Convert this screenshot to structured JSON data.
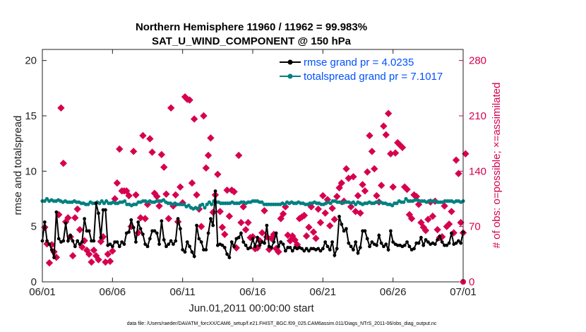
{
  "chart_data": {
    "type": "line",
    "title": "Northern Hemisphere 11960 / 11962 = 99.983%",
    "subtitle": "SAT_U_WIND_COMPONENT @ 150 hPa",
    "xlabel": "Jun.01,2011 00:00:00 start",
    "ylabel": "rmse and totalspread",
    "y2label": "# of obs: o=possible; ×=assimilated",
    "x_ticks": [
      "06/01",
      "06/06",
      "06/11",
      "06/16",
      "06/21",
      "06/26",
      "07/01"
    ],
    "x_range_days": [
      0,
      30
    ],
    "ylim": [
      0,
      21
    ],
    "y_ticks": [
      0,
      5,
      10,
      15,
      20
    ],
    "y2lim": [
      0,
      294
    ],
    "y2_ticks": [
      0,
      70,
      140,
      210,
      280
    ],
    "legend_position": "top-right",
    "footer": "data file: /Users/raeder/DAI/ATM_forcXX/CAM6_setup/f.e21.FHIST_BGC.f09_025.CAM6assim.011/Diags_NTrS_2011-06/obs_diag_output.nc",
    "colors": {
      "rmse": "#000000",
      "spread": "#00807f",
      "obs": "#d6004f",
      "legend_text": "#0050ff"
    },
    "series": [
      {
        "name": "rmse grand pr = 4.0235",
        "key": "rmse",
        "values": [
          3.7,
          5.4,
          3.7,
          3.4,
          2.9,
          2.2,
          6.3,
          3.9,
          3.6,
          3.7,
          5.3,
          3.7,
          4.2,
          3.7,
          3.2,
          3.7,
          3.4,
          3.6,
          5.7,
          4.6,
          4.6,
          3.7,
          3.7,
          7.1,
          6.2,
          4.0,
          6.5,
          6.5,
          3.3,
          3.4,
          3.2,
          3.6,
          3.6,
          3.2,
          3.6,
          3.4,
          4.4,
          4.5,
          5.6,
          4.9,
          3.6,
          5.4,
          4.8,
          4.3,
          3.4,
          3.2,
          3.9,
          4.6,
          4.6,
          4.4,
          3.4,
          5.5,
          3.8,
          3.2,
          3.4,
          3.7,
          3.4,
          3.7,
          5.7,
          4.8,
          2.9,
          2.7,
          3.6,
          3.2,
          2.7,
          2.3,
          5.1,
          3.9,
          3.6,
          2.9,
          2.9,
          4.4,
          5.7,
          5.1,
          8.2,
          3.3,
          3.4,
          3.3,
          3.1,
          2.5,
          2.2,
          3.6,
          3.2,
          3.9,
          4.0,
          4.4,
          3.6,
          3.3,
          3.0,
          3.1,
          3.9,
          3.2,
          4.0,
          3.3,
          3.6,
          3.5,
          5.1,
          3.2,
          3.1,
          3.6,
          4.4,
          3.2,
          3.6,
          3.4,
          2.8,
          3.1,
          3.1,
          2.8,
          3.1,
          3.0,
          3.1,
          3.0,
          2.8,
          3.0,
          2.8,
          3.0,
          3.0,
          2.9,
          3.0,
          2.8,
          3.0,
          3.6,
          3.2,
          2.9,
          3.6,
          2.4,
          3.0,
          5.9,
          5.2,
          4.6,
          4.8,
          3.5,
          3.2,
          2.9,
          3.6,
          2.6,
          3.1,
          4.6,
          4.6,
          3.9,
          3.2,
          3.6,
          3.4,
          3.3,
          4.2,
          3.5,
          3.2,
          3.4,
          2.9,
          4.6,
          3.6,
          3.4,
          3.3,
          3.3,
          3.2,
          3.3,
          3.6,
          3.2,
          2.9,
          3.0,
          3.5,
          3.5,
          4.0,
          3.3,
          3.8,
          3.6,
          3.4,
          3.5,
          3.4,
          3.8,
          4.1,
          3.6,
          3.3,
          3.3,
          3.5,
          4.4,
          3.4,
          3.5,
          3.7,
          3.5,
          4.5
        ]
      },
      {
        "name": "totalspread grand pr = 7.1017",
        "key": "spread",
        "values": [
          7.3,
          7.3,
          7.5,
          7.3,
          7.4,
          7.3,
          7.3,
          7.4,
          7.3,
          7.2,
          7.3,
          7.2,
          7.2,
          7.2,
          7.3,
          7.2,
          7.2,
          7.1,
          7.1,
          7.0,
          7.0,
          7.2,
          7.1,
          7.1,
          7.2,
          7.1,
          7.3,
          7.1,
          7.3,
          7.1,
          7.1,
          7.2,
          7.1,
          7.1,
          7.2,
          7.2,
          7.3,
          7.0,
          7.0,
          6.9,
          7.0,
          7.0,
          7.2,
          7.2,
          7.3,
          7.3,
          7.2,
          7.3,
          7.2,
          7.2,
          7.3,
          7.3,
          7.3,
          7.4,
          7.2,
          7.1,
          7.1,
          7.0,
          7.1,
          7.0,
          7.0,
          7.0,
          7.0,
          6.8,
          6.9,
          6.7,
          6.6,
          6.7,
          6.6,
          6.9,
          7.0,
          6.7,
          7.0,
          7.2,
          7.0,
          7.3,
          7.2,
          7.2,
          7.1,
          7.1,
          7.1,
          7.1,
          7.1,
          7.2,
          7.1,
          7.1,
          7.1,
          7.2,
          7.2,
          7.1,
          7.2,
          7.2,
          7.3,
          7.3,
          7.3,
          7.2,
          7.2,
          7.0,
          7.0,
          7.0,
          7.0,
          7.0,
          7.0,
          7.0,
          7.0,
          7.1,
          7.0,
          7.2,
          7.1,
          7.2,
          7.1,
          7.1,
          7.2,
          7.1,
          7.1,
          7.0,
          7.0,
          7.1,
          7.1,
          7.2,
          7.1,
          7.1,
          7.0,
          7.0,
          7.1,
          7.2,
          7.1,
          7.3,
          7.3,
          7.2,
          7.2,
          7.1,
          7.2,
          7.2,
          7.2,
          7.1,
          7.2,
          7.0,
          7.2,
          7.1,
          7.0,
          7.1,
          7.1,
          7.2,
          7.1,
          7.1,
          7.2,
          7.2,
          7.2,
          7.1,
          7.1,
          7.0,
          7.0,
          6.9,
          7.1,
          7.1,
          7.3,
          7.2,
          7.2,
          7.5,
          7.3,
          7.3,
          7.3,
          7.4,
          7.4,
          7.3,
          7.3,
          7.3,
          7.2,
          7.3,
          7.3,
          7.3,
          7.3,
          7.2,
          7.2,
          7.2,
          7.3,
          7.3,
          7.3,
          7.3,
          7.2,
          7.3,
          7.3,
          7.2,
          7.3
        ]
      },
      {
        "name": "obs assimilated",
        "key": "obs",
        "points": [
          [
            0.17,
            69
          ],
          [
            0.33,
            48
          ],
          [
            0.5,
            24
          ],
          [
            0.67,
            47
          ],
          [
            0.83,
            38
          ],
          [
            1.0,
            31
          ],
          [
            1.17,
            85
          ],
          [
            1.33,
            220
          ],
          [
            1.5,
            150
          ],
          [
            1.67,
            76
          ],
          [
            1.83,
            81
          ],
          [
            2.0,
            57
          ],
          [
            2.17,
            33
          ],
          [
            2.33,
            81
          ],
          [
            2.5,
            92
          ],
          [
            2.67,
            66
          ],
          [
            2.83,
            44
          ],
          [
            3.0,
            52
          ],
          [
            3.17,
            40
          ],
          [
            3.33,
            35
          ],
          [
            3.5,
            25
          ],
          [
            3.67,
            40
          ],
          [
            3.83,
            33
          ],
          [
            4.0,
            28
          ],
          [
            4.17,
            51
          ],
          [
            4.33,
            57
          ],
          [
            4.5,
            25
          ],
          [
            4.67,
            35
          ],
          [
            4.83,
            26
          ],
          [
            5.0,
            39
          ],
          [
            5.17,
            105
          ],
          [
            5.33,
            125
          ],
          [
            5.5,
            168
          ],
          [
            5.67,
            115
          ],
          [
            5.83,
            115
          ],
          [
            6.0,
            115
          ],
          [
            6.17,
            109
          ],
          [
            6.33,
            70
          ],
          [
            6.5,
            165
          ],
          [
            6.67,
            110
          ],
          [
            6.83,
            62
          ],
          [
            7.0,
            81
          ],
          [
            7.17,
            185
          ],
          [
            7.33,
            80
          ],
          [
            7.5,
            98
          ],
          [
            7.67,
            181
          ],
          [
            7.83,
            164
          ],
          [
            8.0,
            112
          ],
          [
            8.17,
            108
          ],
          [
            8.33,
            96
          ],
          [
            8.5,
            161
          ],
          [
            8.67,
            145
          ],
          [
            8.83,
            111
          ],
          [
            9.0,
            80
          ],
          [
            9.17,
            220
          ],
          [
            9.33,
            96
          ],
          [
            9.5,
            110
          ],
          [
            9.67,
            76
          ],
          [
            9.83,
            120
          ],
          [
            10.0,
            100
          ],
          [
            10.17,
            234
          ],
          [
            10.33,
            231
          ],
          [
            10.5,
            230
          ],
          [
            10.67,
            125
          ],
          [
            10.83,
            206
          ],
          [
            11.0,
            110
          ],
          [
            11.17,
            92
          ],
          [
            11.33,
            70
          ],
          [
            11.5,
            210
          ],
          [
            11.67,
            144
          ],
          [
            11.83,
            160
          ],
          [
            12.0,
            182
          ],
          [
            12.17,
            88
          ],
          [
            12.33,
            110
          ],
          [
            12.5,
            136
          ],
          [
            12.67,
            89
          ],
          [
            12.83,
            69
          ],
          [
            13.0,
            60
          ],
          [
            13.17,
            116
          ],
          [
            13.33,
            83
          ],
          [
            13.5,
            116
          ],
          [
            13.67,
            114
          ],
          [
            13.83,
            43
          ],
          [
            14.0,
            160
          ],
          [
            14.17,
            75
          ],
          [
            14.33,
            95
          ],
          [
            14.5,
            66
          ],
          [
            14.67,
            75
          ],
          [
            14.83,
            56
          ],
          [
            15.0,
            57
          ],
          [
            15.17,
            42
          ],
          [
            15.33,
            43
          ],
          [
            15.5,
            52
          ],
          [
            15.67,
            62
          ],
          [
            15.83,
            90
          ],
          [
            16.0,
            57
          ],
          [
            16.17,
            41
          ],
          [
            16.33,
            55
          ],
          [
            16.5,
            60
          ],
          [
            16.67,
            42
          ],
          [
            16.83,
            38
          ],
          [
            17.0,
            80
          ],
          [
            17.17,
            86
          ],
          [
            17.33,
            95
          ],
          [
            17.5,
            59
          ],
          [
            17.67,
            52
          ],
          [
            17.83,
            58
          ],
          [
            18.0,
            53
          ],
          [
            18.17,
            47
          ],
          [
            18.33,
            80
          ],
          [
            18.5,
            82
          ],
          [
            18.67,
            84
          ],
          [
            18.83,
            58
          ],
          [
            19.0,
            69
          ],
          [
            19.17,
            95
          ],
          [
            19.33,
            63
          ],
          [
            19.5,
            55
          ],
          [
            19.67,
            92
          ],
          [
            19.83,
            75
          ],
          [
            20.0,
            109
          ],
          [
            20.17,
            87
          ],
          [
            20.33,
            104
          ],
          [
            20.5,
            71
          ],
          [
            20.67,
            93
          ],
          [
            20.83,
            79
          ],
          [
            21.0,
            108
          ],
          [
            21.17,
            119
          ],
          [
            21.33,
            125
          ],
          [
            21.5,
            102
          ],
          [
            21.67,
            143
          ],
          [
            21.83,
            131
          ],
          [
            22.0,
            95
          ],
          [
            22.17,
            133
          ],
          [
            22.33,
            89
          ],
          [
            22.5,
            109
          ],
          [
            22.67,
            87
          ],
          [
            22.83,
            123
          ],
          [
            23.0,
            115
          ],
          [
            23.17,
            139
          ],
          [
            23.33,
            185
          ],
          [
            23.5,
            165
          ],
          [
            23.67,
            143
          ],
          [
            23.83,
            109
          ],
          [
            24.0,
            101
          ],
          [
            24.17,
            122
          ],
          [
            24.33,
            197
          ],
          [
            24.5,
            186
          ],
          [
            24.67,
            213
          ],
          [
            24.83,
            162
          ],
          [
            25.0,
            120
          ],
          [
            25.17,
            163
          ],
          [
            25.33,
            176
          ],
          [
            25.5,
            173
          ],
          [
            25.67,
            170
          ],
          [
            25.83,
            120
          ],
          [
            26.0,
            117
          ],
          [
            26.17,
            85
          ],
          [
            26.33,
            80
          ],
          [
            26.5,
            110
          ],
          [
            26.67,
            108
          ],
          [
            26.83,
            98
          ],
          [
            27.0,
            75
          ],
          [
            27.17,
            69
          ],
          [
            27.33,
            65
          ],
          [
            27.5,
            79
          ],
          [
            27.67,
            101
          ],
          [
            27.83,
            83
          ],
          [
            28.0,
            102
          ],
          [
            28.17,
            66
          ],
          [
            28.33,
            56
          ],
          [
            28.5,
            57
          ],
          [
            28.67,
            96
          ],
          [
            28.83,
            70
          ],
          [
            29.0,
            73
          ],
          [
            29.17,
            89
          ],
          [
            29.33,
            62
          ],
          [
            29.5,
            154
          ],
          [
            29.67,
            137
          ],
          [
            29.83,
            75
          ],
          [
            30.0,
            62
          ],
          [
            30.17,
            162
          ]
        ]
      }
    ]
  }
}
